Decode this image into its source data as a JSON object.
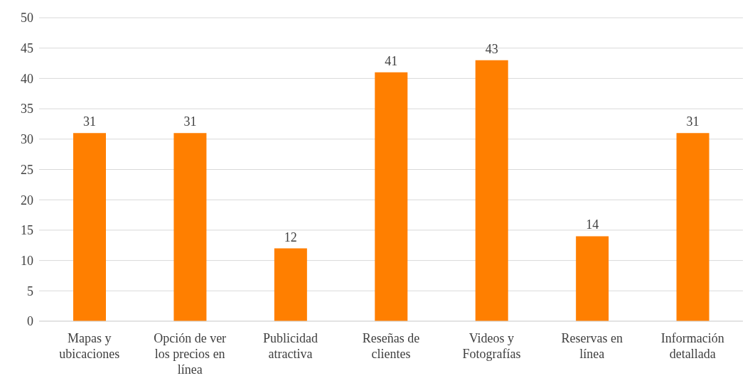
{
  "chart_data": {
    "type": "bar",
    "categories": [
      "Mapas y ubicaciones",
      "Opción de ver los precios en línea",
      "Publicidad atractiva",
      "Reseñas de clientes",
      "Videos y Fotografías",
      "Reservas en línea",
      "Información detallada"
    ],
    "values": [
      31,
      31,
      12,
      41,
      43,
      14,
      31
    ],
    "color": "#ff7f00",
    "ylim": [
      0,
      50
    ],
    "yticks": [
      0,
      5,
      10,
      15,
      20,
      25,
      30,
      35,
      40,
      45,
      50
    ],
    "grid": "y",
    "data_labels": true
  }
}
